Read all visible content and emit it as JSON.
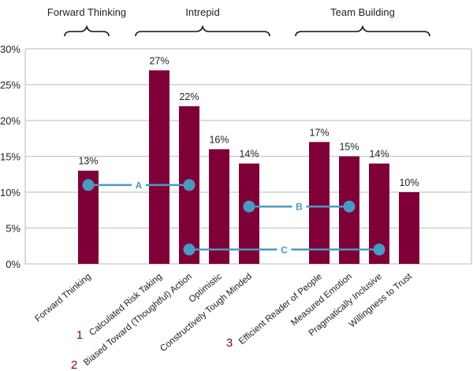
{
  "chart_data": {
    "type": "bar",
    "title": "",
    "xlabel": "",
    "ylabel": "",
    "ylim": [
      0,
      30
    ],
    "yticks": [
      "0%",
      "5%",
      "10%",
      "15%",
      "20%",
      "25%",
      "30%"
    ],
    "grid": true,
    "categories": [
      "Forward Thinking",
      "Calculated Risk Taking",
      "Biased Toward (Thoughtful) Action",
      "Optimistic",
      "Constructively Tough Minded",
      "Efficient Reader of People",
      "Measured Emotion",
      "Pragmatically Inclusive",
      "Willingness to Trust"
    ],
    "values": [
      13,
      27,
      22,
      16,
      14,
      17,
      15,
      14,
      10
    ],
    "data_labels": [
      "13%",
      "27%",
      "22%",
      "16%",
      "14%",
      "17%",
      "15%",
      "14%",
      "10%"
    ],
    "category_markers": [
      {
        "category": 1,
        "label": "1"
      },
      {
        "category": 2,
        "label": "2"
      },
      {
        "category": 5,
        "label": "3"
      }
    ],
    "groups": [
      {
        "label": "Forward Thinking",
        "from": 0,
        "to": 0
      },
      {
        "label": "Intrepid",
        "from": 1,
        "to": 4
      },
      {
        "label": "Team Building",
        "from": 5,
        "to": 8
      }
    ],
    "connectors": [
      {
        "label": "A",
        "from": 0,
        "to": 2,
        "y": 11
      },
      {
        "label": "B",
        "from": 4,
        "to": 6,
        "y": 8
      },
      {
        "label": "C",
        "from": 2,
        "to": 7,
        "y": 2
      }
    ],
    "colors": {
      "bar": "#7f0037",
      "connector": "#4a9ac4",
      "grid": "#c8c8c8",
      "marker": "#7f0037"
    }
  }
}
